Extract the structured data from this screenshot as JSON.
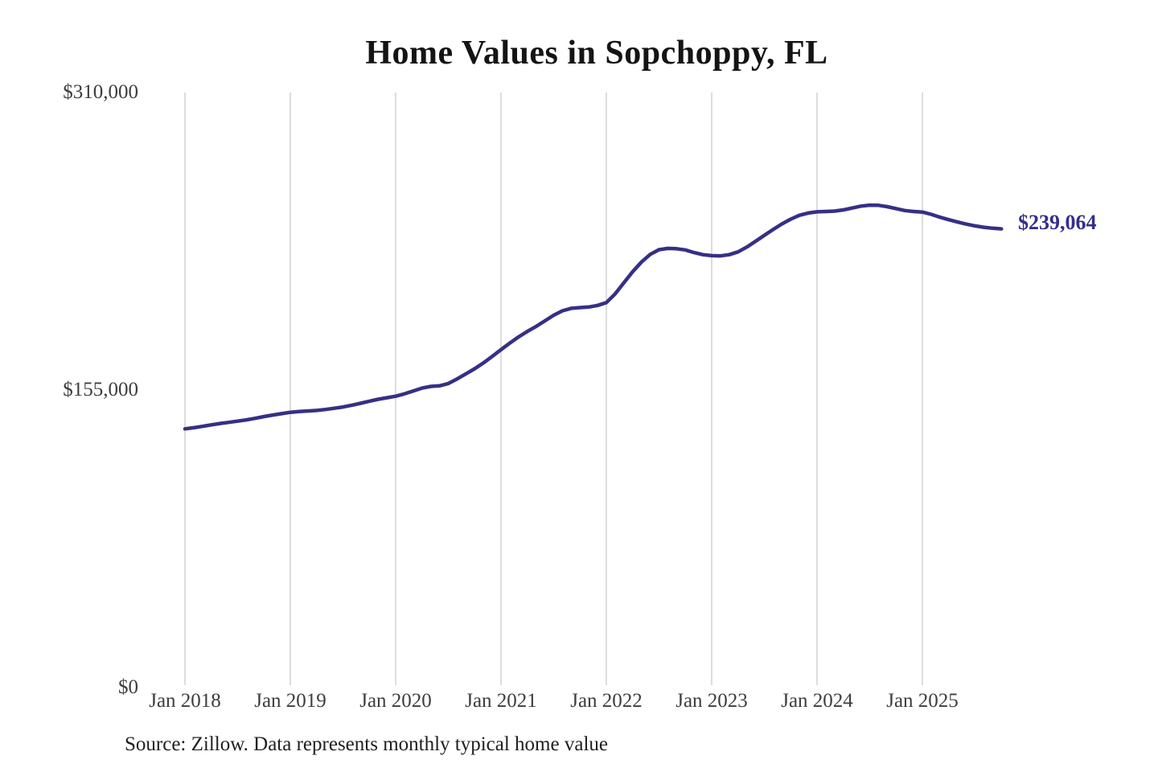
{
  "title": "Home Values in Sopchoppy, FL",
  "source_note": "Source: Zillow. Data represents monthly typical home value",
  "chart_data": {
    "type": "line",
    "series_name": "Monthly typical home value",
    "title": "Home Values in Sopchoppy, FL",
    "xlabel": "",
    "ylabel": "",
    "frequency": "monthly",
    "start_month": "2018-01",
    "end_month": "2025-10",
    "unit": "USD",
    "ylim": [
      0,
      310000
    ],
    "y_tick_values": [
      310000,
      155000,
      0
    ],
    "y_tick_labels": [
      "$310,000",
      "$155,000",
      "$0"
    ],
    "x_tick_labels": [
      "Jan 2018",
      "Jan 2019",
      "Jan 2020",
      "Jan 2021",
      "Jan 2022",
      "Jan 2023",
      "Jan 2024",
      "Jan 2025"
    ],
    "grid": "vertical-only",
    "legend": "none",
    "end_label": "$239,064",
    "last_value": 239064,
    "line_color": "#363085",
    "grid_color": "#d2d2d2",
    "values": [
      135000,
      135600,
      136300,
      137100,
      137800,
      138400,
      139000,
      139700,
      140500,
      141400,
      142200,
      142900,
      143600,
      144000,
      144300,
      144600,
      145100,
      145700,
      146400,
      147300,
      148300,
      149400,
      150400,
      151200,
      152000,
      153200,
      154700,
      156200,
      157100,
      157400,
      158600,
      161000,
      163600,
      166300,
      169300,
      172700,
      176200,
      179600,
      182800,
      185700,
      188300,
      191200,
      194100,
      196400,
      197700,
      198100,
      198400,
      199200,
      200700,
      205200,
      211000,
      216800,
      221800,
      225800,
      228200,
      228900,
      228700,
      228100,
      226700,
      225600,
      225100,
      225000,
      225600,
      227100,
      229600,
      232600,
      235700,
      238700,
      241600,
      244100,
      246100,
      247300,
      247900,
      248100,
      248300,
      248900,
      249900,
      250900,
      251400,
      251300,
      250600,
      249600,
      248600,
      248100,
      247800,
      246600,
      245100,
      243800,
      242600,
      241500,
      240600,
      239900,
      239400,
      239064
    ]
  }
}
